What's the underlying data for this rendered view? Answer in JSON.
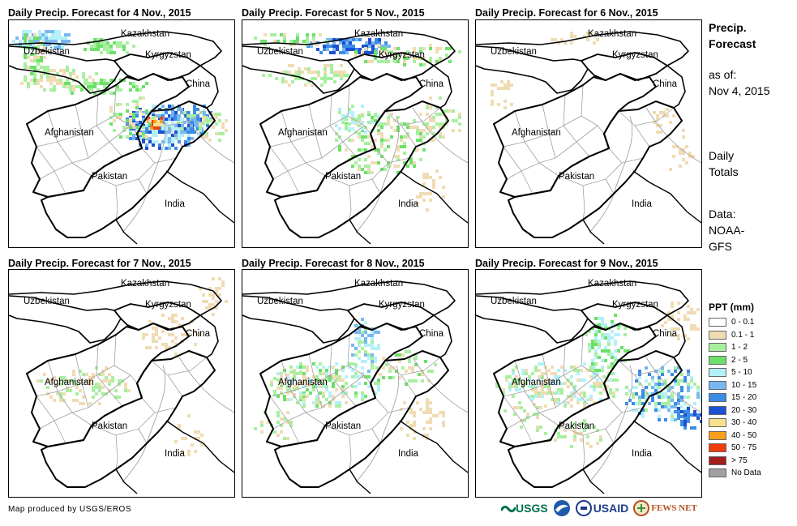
{
  "panels": [
    {
      "title": "Daily Precip. Forecast for 4 Nov., 2015"
    },
    {
      "title": "Daily Precip. Forecast for 5 Nov., 2015"
    },
    {
      "title": "Daily Precip. Forecast for 6 Nov., 2015"
    },
    {
      "title": "Daily Precip. Forecast for 7 Nov., 2015"
    },
    {
      "title": "Daily Precip. Forecast for 8 Nov., 2015"
    },
    {
      "title": "Daily Precip. Forecast for 9 Nov., 2015"
    }
  ],
  "map_labels": {
    "kazakhstan": "Kazakhstan",
    "uzbekistan": "Uzbekistan",
    "kyrgyzstan": "Kyrgyzstan",
    "china": "China",
    "afghanistan": "Afghanistan",
    "pakistan": "Pakistan",
    "india": "India"
  },
  "sidebar": {
    "title_line1": "Precip.",
    "title_line2": "Forecast",
    "asof_label": "as of:",
    "asof_date": "Nov 4, 2015",
    "totals_line1": "Daily",
    "totals_line2": "Totals",
    "data_line1": "Data:",
    "data_line2": "NOAA-",
    "data_line3": "GFS"
  },
  "legend": {
    "title": "PPT (mm)",
    "items": [
      {
        "label": "0 - 0.1",
        "color": "#ffffff"
      },
      {
        "label": "0.1 - 1",
        "color": "#f0dcb4"
      },
      {
        "label": "1 - 2",
        "color": "#a8f0a0"
      },
      {
        "label": "2 - 5",
        "color": "#6ee06a"
      },
      {
        "label": "5 - 10",
        "color": "#b4f0f8"
      },
      {
        "label": "10 - 15",
        "color": "#78b8f0"
      },
      {
        "label": "15 - 20",
        "color": "#3c8ce6"
      },
      {
        "label": "20 - 30",
        "color": "#1e50d2"
      },
      {
        "label": "30 - 40",
        "color": "#f8e08c"
      },
      {
        "label": "40 - 50",
        "color": "#f8a01e"
      },
      {
        "label": "50 - 75",
        "color": "#f03c0a"
      },
      {
        "label": "> 75",
        "color": "#a01e1e"
      },
      {
        "label": "No Data",
        "color": "#a0a0a0"
      }
    ]
  },
  "credit": "Map produced by USGS/EROS",
  "logos": {
    "usgs": "USGS",
    "usaid": "USAID",
    "fewsnet": "FEWS NET"
  }
}
